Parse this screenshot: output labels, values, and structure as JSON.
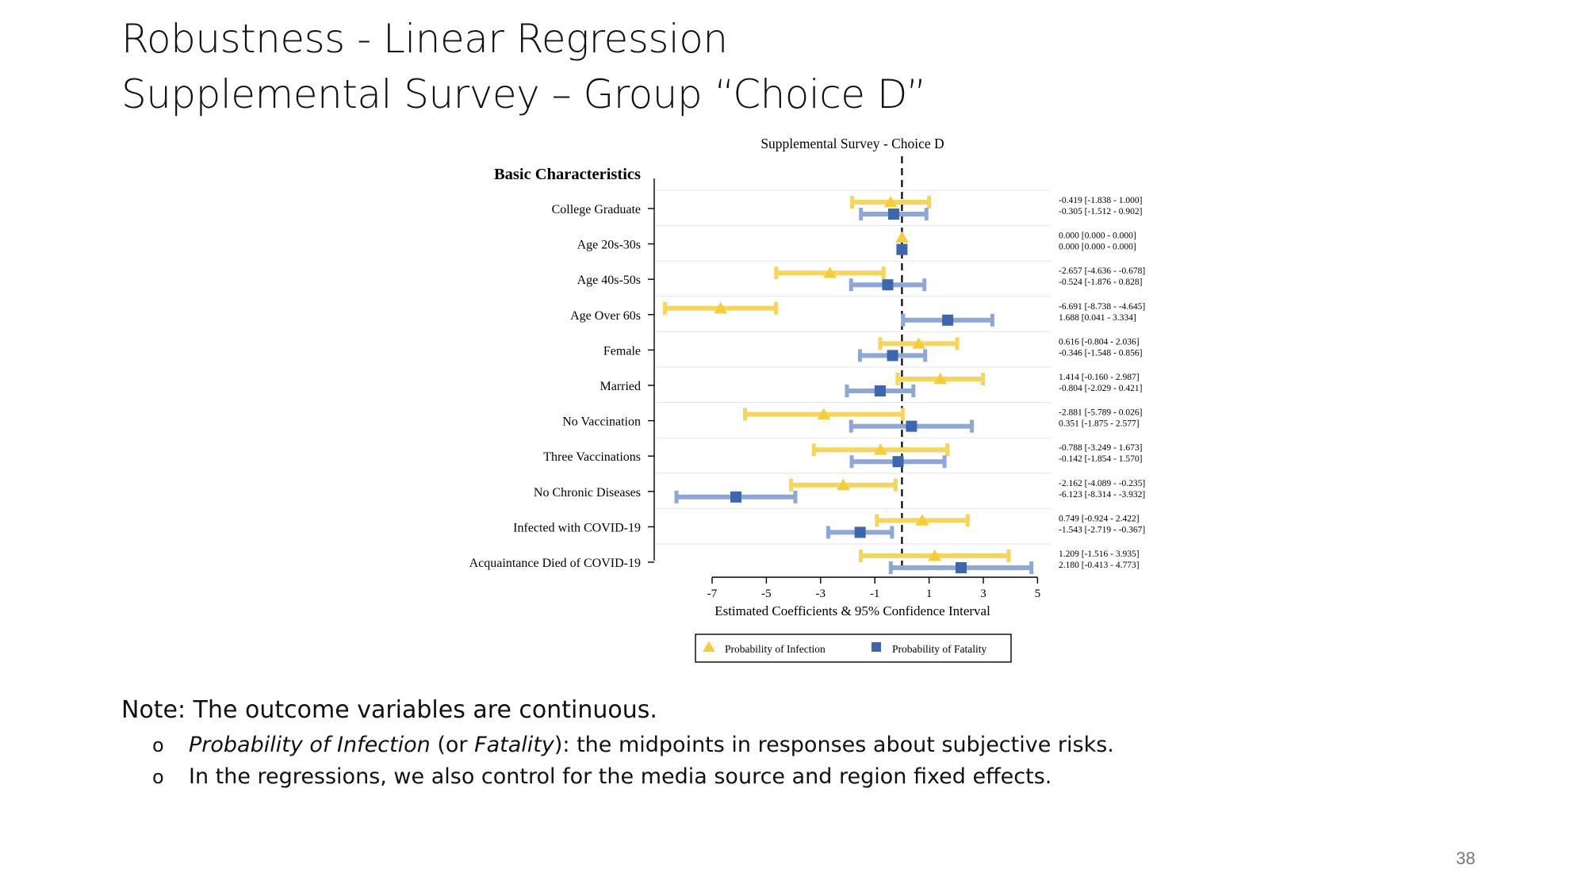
{
  "slide": {
    "title_line1": "Robustness - Linear Regression",
    "title_line2": "Supplemental Survey – Group “Choice D”",
    "note": "Note: The outcome variables are continuous.",
    "bullet1": {
      "marker": "o",
      "italic1": "Probability of Infection",
      "text1": " (or ",
      "italic2": "Fatality",
      "text2": "): the midpoints in responses about subjective risks."
    },
    "bullet2": {
      "marker": "o",
      "text": "In the regressions, we also control for the media source and region fixed effects."
    },
    "page_number": "38"
  },
  "chart_data": {
    "type": "coefficient-plot",
    "title": "Supplemental Survey - Choice D",
    "group_label": "Basic Characteristics",
    "xlabel": "Estimated Coefficients & 95% Confidence Interval",
    "xlim": [
      -7.3,
      5
    ],
    "xticks": [
      -7,
      -5,
      -3,
      -1,
      1,
      3,
      5
    ],
    "reference_line": 0,
    "legend_position": "bottom",
    "colors": {
      "infection": "#F5CD3B",
      "infection_ci": "#F7D55A",
      "fatality": "#3C66AD",
      "fatality_ci": "#8DA8D6"
    },
    "series": [
      {
        "key": "infection",
        "name": "Probability of Infection",
        "marker": "triangle"
      },
      {
        "key": "fatality",
        "name": "Probability of Fatality",
        "marker": "square"
      }
    ],
    "rows": [
      {
        "label": "College Graduate",
        "infection": {
          "est": -0.419,
          "lo": -1.838,
          "hi": 1.0,
          "text": "-0.419  [-1.838 - 1.000]"
        },
        "fatality": {
          "est": -0.305,
          "lo": -1.512,
          "hi": 0.902,
          "text": "-0.305  [-1.512 - 0.902]"
        }
      },
      {
        "label": "Age 20s-30s",
        "infection": {
          "est": 0.0,
          "lo": 0.0,
          "hi": 0.0,
          "text": "0.000  [0.000 - 0.000]"
        },
        "fatality": {
          "est": 0.0,
          "lo": 0.0,
          "hi": 0.0,
          "text": "0.000  [0.000 - 0.000]"
        }
      },
      {
        "label": "Age 40s-50s",
        "infection": {
          "est": -2.657,
          "lo": -4.636,
          "hi": -0.678,
          "text": "-2.657  [-4.636 - -0.678]"
        },
        "fatality": {
          "est": -0.524,
          "lo": -1.876,
          "hi": 0.828,
          "text": "-0.524  [-1.876 - 0.828]"
        }
      },
      {
        "label": "Age Over 60s",
        "infection": {
          "est": -6.691,
          "lo": -8.738,
          "hi": -4.645,
          "text": "-6.691  [-8.738 - -4.645]"
        },
        "fatality": {
          "est": 1.688,
          "lo": 0.041,
          "hi": 3.334,
          "text": "1.688  [0.041 - 3.334]"
        }
      },
      {
        "label": "Female",
        "infection": {
          "est": 0.616,
          "lo": -0.804,
          "hi": 2.036,
          "text": "0.616  [-0.804 - 2.036]"
        },
        "fatality": {
          "est": -0.346,
          "lo": -1.548,
          "hi": 0.856,
          "text": "-0.346  [-1.548 - 0.856]"
        }
      },
      {
        "label": "Married",
        "infection": {
          "est": 1.414,
          "lo": -0.16,
          "hi": 2.987,
          "text": "1.414  [-0.160 - 2.987]"
        },
        "fatality": {
          "est": -0.804,
          "lo": -2.029,
          "hi": 0.421,
          "text": "-0.804  [-2.029 - 0.421]"
        }
      },
      {
        "label": "No Vaccination",
        "infection": {
          "est": -2.881,
          "lo": -5.789,
          "hi": 0.026,
          "text": "-2.881  [-5.789 - 0.026]"
        },
        "fatality": {
          "est": 0.351,
          "lo": -1.875,
          "hi": 2.577,
          "text": "0.351  [-1.875 - 2.577]"
        }
      },
      {
        "label": "Three Vaccinations",
        "infection": {
          "est": -0.788,
          "lo": -3.249,
          "hi": 1.673,
          "text": "-0.788  [-3.249 - 1.673]"
        },
        "fatality": {
          "est": -0.142,
          "lo": -1.854,
          "hi": 1.57,
          "text": "-0.142  [-1.854 - 1.570]"
        }
      },
      {
        "label": "No Chronic Diseases",
        "infection": {
          "est": -2.162,
          "lo": -4.089,
          "hi": -0.235,
          "text": "-2.162  [-4.089 - -0.235]"
        },
        "fatality": {
          "est": -6.123,
          "lo": -8.314,
          "hi": -3.932,
          "text": "-6.123  [-8.314 - -3.932]"
        }
      },
      {
        "label": "Infected with COVID-19",
        "infection": {
          "est": 0.749,
          "lo": -0.924,
          "hi": 2.422,
          "text": "0.749  [-0.924 - 2.422]"
        },
        "fatality": {
          "est": -1.543,
          "lo": -2.719,
          "hi": -0.367,
          "text": "-1.543  [-2.719 - -0.367]"
        }
      },
      {
        "label": "Acquaintance Died of COVID-19",
        "infection": {
          "est": 1.209,
          "lo": -1.516,
          "hi": 3.935,
          "text": "1.209  [-1.516 - 3.935]"
        },
        "fatality": {
          "est": 2.18,
          "lo": -0.413,
          "hi": 4.773,
          "text": "2.180  [-0.413 - 4.773]"
        }
      }
    ]
  }
}
